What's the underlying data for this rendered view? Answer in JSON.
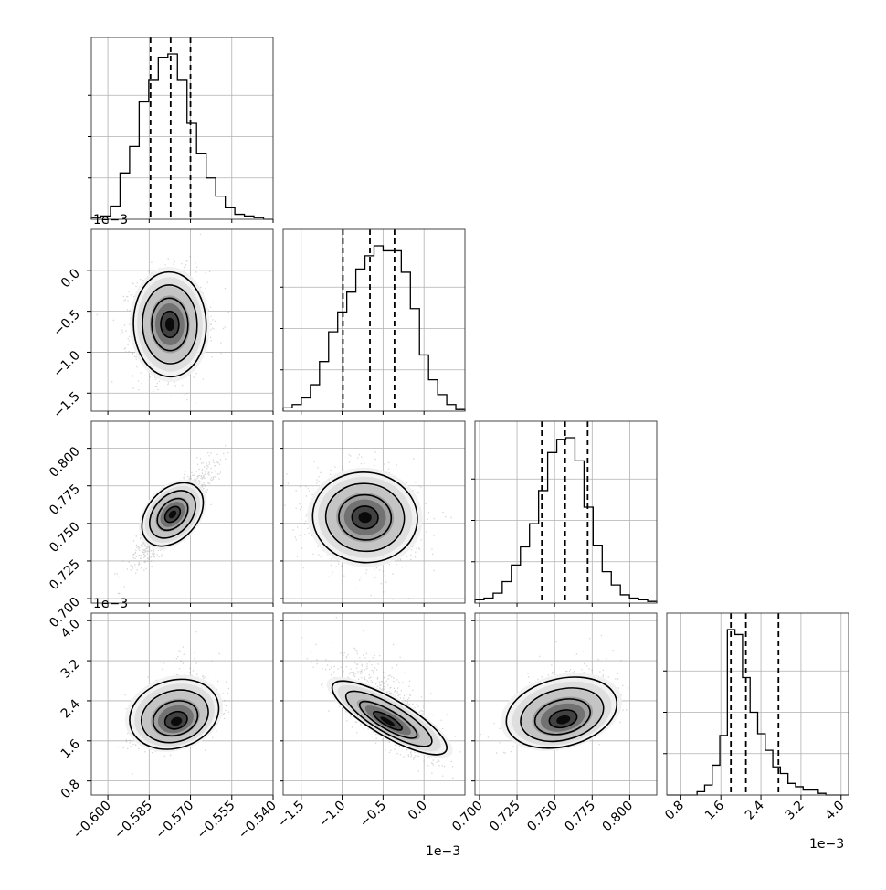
{
  "chart_data": {
    "type": "corner",
    "grid": true,
    "offset_label": "1e−3",
    "parameters": [
      {
        "range": [
          -0.606,
          -0.54
        ],
        "ticks": [
          -0.6,
          -0.585,
          -0.57,
          -0.555,
          -0.54
        ],
        "tick_labels": [
          "−0.600",
          "−0.585",
          "−0.570",
          "−0.555",
          "−0.540"
        ],
        "quantiles": [
          -0.5845,
          -0.5772,
          -0.57
        ],
        "peak": -0.5775,
        "sigma": 0.0066,
        "hist": [
          0.01,
          0.02,
          0.08,
          0.28,
          0.44,
          0.71,
          0.84,
          0.98,
          1.0,
          0.84,
          0.58,
          0.4,
          0.25,
          0.14,
          0.07,
          0.03,
          0.02,
          0.01,
          0.0
        ]
      },
      {
        "range": [
          -1.72,
          0.5
        ],
        "ticks": [
          -1.5,
          -1.0,
          -0.5,
          0.0
        ],
        "tick_labels": [
          "−1.5",
          "−1.0",
          "−0.5",
          "0.0"
        ],
        "quantiles": [
          -0.99,
          -0.66,
          -0.36
        ],
        "peak": -0.62,
        "sigma": 0.32,
        "hist": [
          0.02,
          0.04,
          0.08,
          0.16,
          0.3,
          0.48,
          0.6,
          0.72,
          0.86,
          0.94,
          1.0,
          0.97,
          0.97,
          0.84,
          0.62,
          0.34,
          0.19,
          0.1,
          0.04,
          0.01
        ]
      },
      {
        "range": [
          0.697,
          0.818
        ],
        "ticks": [
          0.7,
          0.725,
          0.75,
          0.775,
          0.8
        ],
        "tick_labels": [
          "0.700",
          "0.725",
          "0.750",
          "0.775",
          "0.800"
        ],
        "quantiles": [
          0.7415,
          0.757,
          0.772
        ],
        "peak": 0.757,
        "sigma": 0.015,
        "hist": [
          0.02,
          0.03,
          0.06,
          0.13,
          0.23,
          0.34,
          0.48,
          0.68,
          0.91,
          0.99,
          1.0,
          0.86,
          0.58,
          0.35,
          0.19,
          0.11,
          0.05,
          0.03,
          0.02,
          0.01
        ]
      },
      {
        "range": [
          0.52,
          4.15
        ],
        "ticks": [
          0.8,
          1.6,
          2.4,
          3.2,
          4.0
        ],
        "tick_labels": [
          "0.8",
          "1.6",
          "2.4",
          "3.2",
          "4.0"
        ],
        "quantiles": [
          1.8,
          2.1,
          2.75
        ],
        "peak": 1.95,
        "sigma": 0.45,
        "hist": [
          0.0,
          0.0,
          0.0,
          0.0,
          0.02,
          0.06,
          0.18,
          0.36,
          1.0,
          0.97,
          0.71,
          0.5,
          0.37,
          0.27,
          0.17,
          0.13,
          0.07,
          0.05,
          0.03,
          0.03,
          0.01,
          0.0,
          0.0,
          0.0
        ]
      }
    ],
    "pairs": [
      {
        "row": 1,
        "col": 0,
        "correlation": 0.02,
        "peak": [
          -0.5775,
          -0.66
        ]
      },
      {
        "row": 2,
        "col": 0,
        "correlation": 0.88,
        "peak": [
          -0.5765,
          0.756
        ]
      },
      {
        "row": 2,
        "col": 1,
        "correlation": -0.1,
        "peak": [
          -0.72,
          0.754
        ]
      },
      {
        "row": 3,
        "col": 0,
        "correlation": 0.25,
        "peak": [
          -0.575,
          1.97
        ]
      },
      {
        "row": 3,
        "col": 1,
        "correlation": -0.68,
        "peak": [
          -0.45,
          1.98
        ]
      },
      {
        "row": 3,
        "col": 2,
        "correlation": 0.25,
        "peak": [
          0.756,
          2.0
        ]
      }
    ]
  }
}
